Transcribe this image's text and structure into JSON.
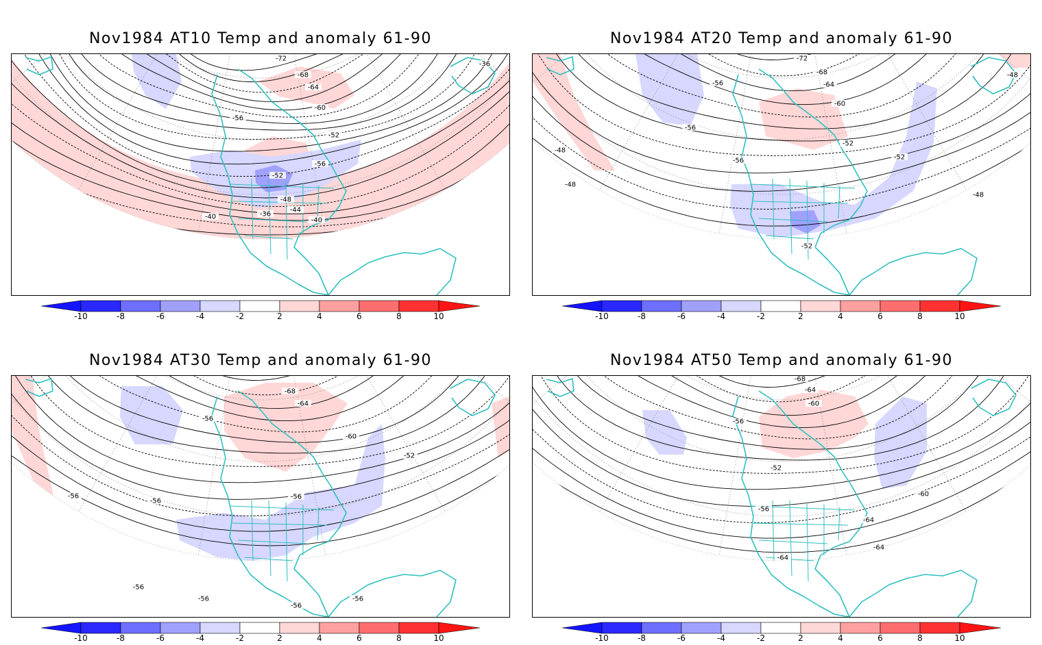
{
  "panels": [
    {
      "title": "Nov1984 AT10 Temp and anomaly 61-90",
      "contour_labels": [
        "-72",
        "-68",
        "-64",
        "-60",
        "-56",
        "-52",
        "-56",
        "-52",
        "-48",
        "-44",
        "-40",
        "-40",
        "-36",
        "-36"
      ]
    },
    {
      "title": "Nov1984 AT20 Temp and anomaly 61-90",
      "contour_labels": [
        "-72",
        "-68",
        "-64",
        "-60",
        "-56",
        "-52",
        "-56",
        "-56",
        "-52",
        "-52",
        "-48",
        "-48",
        "-48",
        "-48"
      ]
    },
    {
      "title": "Nov1984 AT30 Temp and anomaly 61-90",
      "contour_labels": [
        "-68",
        "-64",
        "-60",
        "-56",
        "-52",
        "-56",
        "-56",
        "-56",
        "-56",
        "-56",
        "-56",
        "-56"
      ]
    },
    {
      "title": "Nov1984 AT50 Temp and anomaly 61-90",
      "contour_labels": [
        "-68",
        "-64",
        "-60",
        "-56",
        "-52",
        "-56",
        "-60",
        "-64",
        "-64",
        "-64"
      ]
    }
  ],
  "colorbar": {
    "labels": [
      "-10",
      "-8",
      "-6",
      "-4",
      "-2",
      "2",
      "4",
      "6",
      "8",
      "10"
    ],
    "colors": {
      "blue_arrow": "#1414ff",
      "blue_8_10": "#2828ff",
      "blue_6_8": "#6e6eff",
      "blue_4_6": "#a0a0ff",
      "blue_2_4": "#d7d7ff",
      "neutral": "#ffffff",
      "red_2_4": "#ffd7d7",
      "red_4_6": "#ffa0a0",
      "red_6_8": "#ff6e6e",
      "red_8_10": "#ff3232",
      "red_arrow": "#ff1414"
    }
  },
  "map_colors": {
    "coastline": "#2ebfbf",
    "warm_anomaly": "#ffd7d7",
    "cold_anomaly": "#d7d7ff",
    "cold_anomaly_strong": "#a0a0ff",
    "contour": "#000000",
    "grid": "#9a9a9a"
  }
}
